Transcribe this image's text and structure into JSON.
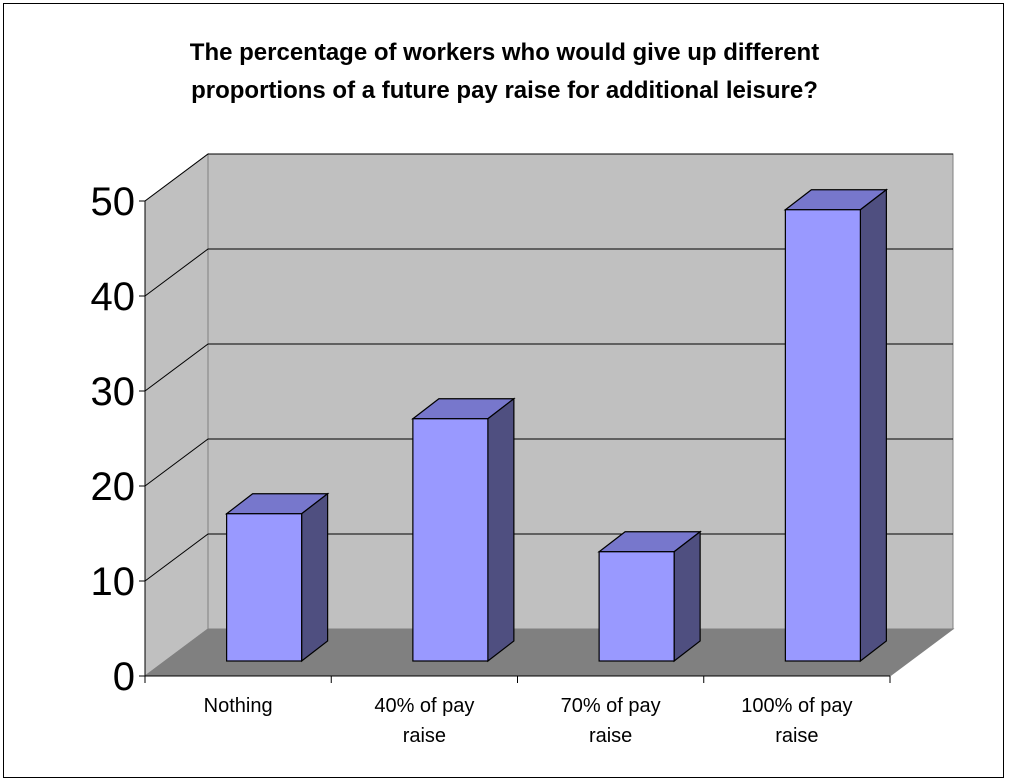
{
  "chart_data": {
    "type": "bar",
    "title": "The percentage of workers who would give up different proportions of a future pay raise for additional leisure?",
    "title_lines": [
      "The percentage of workers who would give up different",
      "proportions of a future pay raise for additional leisure?"
    ],
    "categories": [
      "Nothing",
      "40% of pay raise",
      "70% of pay raise",
      "100% of pay raise"
    ],
    "category_lines": [
      [
        "Nothing"
      ],
      [
        "40% of pay",
        "raise"
      ],
      [
        "70% of pay",
        "raise"
      ],
      [
        "100% of pay",
        "raise"
      ]
    ],
    "values": [
      15.5,
      25.5,
      11.5,
      47.5
    ],
    "ylim": [
      0,
      50
    ],
    "yticks": [
      "0",
      "10",
      "20",
      "30",
      "40",
      "50"
    ],
    "xlabel": "",
    "ylabel": "",
    "grid": true,
    "style": "3d-column",
    "colors": {
      "bar_front": "#9999FF",
      "bar_top": "#7777CC",
      "bar_side": "#4F4F80",
      "back_wall": "#C0C0C0",
      "floor": "#808080",
      "gridline": "#000000"
    }
  }
}
